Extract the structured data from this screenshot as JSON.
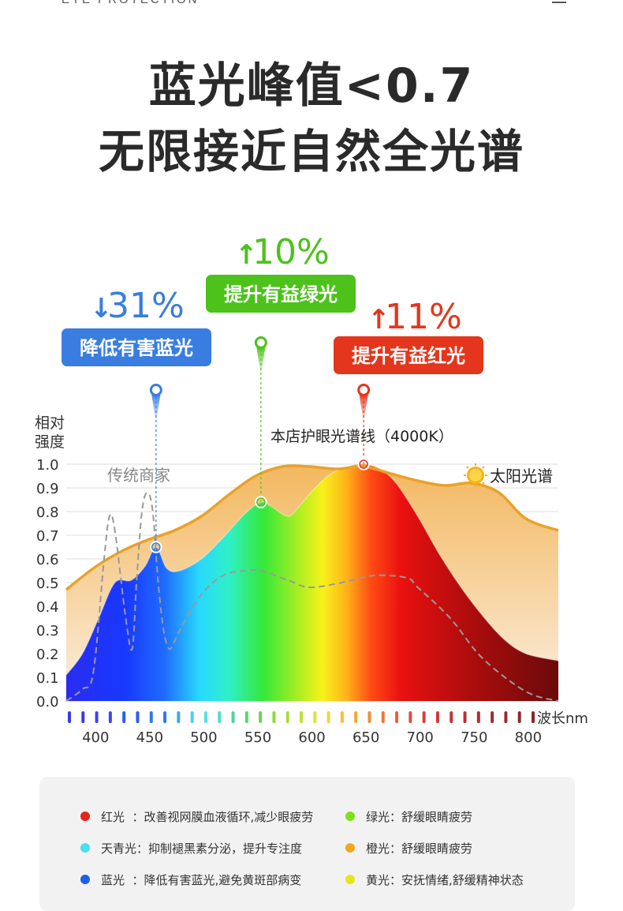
{
  "top_caption": "EYE PROTECTION",
  "headline": {
    "line1": "蓝光峰值<0.7",
    "line2": "无限接近自然全光谱"
  },
  "colors": {
    "blue_badge": "#3a7de0",
    "green_badge": "#4cc21a",
    "red_badge": "#e4361c",
    "sun_curve": "#e8a22a",
    "sun_fill": "#f5c98a",
    "grid": "#dddddd",
    "traditional": "#999999"
  },
  "callouts": [
    {
      "arrow": "↓",
      "pct": "31%",
      "label": "降低有害蓝光",
      "color": "#3a7de0"
    },
    {
      "arrow": "↑",
      "pct": "10%",
      "label": "提升有益绿光",
      "color": "#4cc21a"
    },
    {
      "arrow": "↑",
      "pct": "11%",
      "label": "提升有益红光",
      "color": "#e4361c"
    }
  ],
  "chart_data": {
    "type": "area",
    "ylabel": "相对强度",
    "xlabel": "波长nm",
    "ylim": [
      0,
      1.0
    ],
    "xlim": [
      375,
      830
    ],
    "y_ticks": [
      "0.0",
      "0.1",
      "0.2",
      "0.3",
      "0.4",
      "0.5",
      "0.6",
      "0.7",
      "0.8",
      "0.9",
      "1.0"
    ],
    "x_ticks": [
      "400",
      "450",
      "500",
      "550",
      "600",
      "650",
      "700",
      "750",
      "800"
    ],
    "grid": true,
    "series": [
      {
        "name": "太阳光谱",
        "x": [
          375,
          400,
          425,
          450,
          475,
          500,
          525,
          550,
          575,
          600,
          625,
          650,
          675,
          700,
          725,
          750,
          775,
          800,
          830
        ],
        "values": [
          0.47,
          0.56,
          0.63,
          0.68,
          0.72,
          0.78,
          0.87,
          0.95,
          0.99,
          0.99,
          0.98,
          0.99,
          0.96,
          0.93,
          0.91,
          0.92,
          0.88,
          0.77,
          0.72
        ]
      },
      {
        "name": "本店护眼光谱线（4000K）",
        "x": [
          375,
          390,
          405,
          420,
          435,
          448,
          458,
          468,
          480,
          500,
          520,
          540,
          555,
          565,
          580,
          590,
          605,
          620,
          635,
          650,
          665,
          680,
          700,
          720,
          740,
          760,
          780,
          800,
          830
        ],
        "values": [
          0.11,
          0.2,
          0.35,
          0.5,
          0.51,
          0.57,
          0.65,
          0.56,
          0.55,
          0.6,
          0.69,
          0.79,
          0.84,
          0.82,
          0.78,
          0.82,
          0.9,
          0.96,
          0.99,
          1.0,
          0.98,
          0.92,
          0.78,
          0.62,
          0.48,
          0.36,
          0.26,
          0.2,
          0.17
        ]
      },
      {
        "name": "传统商家",
        "x": [
          375,
          390,
          400,
          410,
          415,
          420,
          430,
          436,
          440,
          445,
          450,
          455,
          460,
          465,
          470,
          475,
          480,
          500,
          520,
          540,
          555,
          580,
          600,
          630,
          660,
          690,
          700,
          730,
          760,
          800,
          830
        ],
        "values": [
          0.0,
          0.05,
          0.12,
          0.6,
          0.78,
          0.72,
          0.35,
          0.22,
          0.5,
          0.8,
          0.88,
          0.8,
          0.5,
          0.3,
          0.22,
          0.25,
          0.3,
          0.45,
          0.53,
          0.55,
          0.55,
          0.51,
          0.48,
          0.5,
          0.53,
          0.52,
          0.48,
          0.35,
          0.18,
          0.04,
          0.0
        ]
      }
    ],
    "markers": [
      {
        "x": 458,
        "y": 0.65,
        "color": "#3a7de0"
      },
      {
        "x": 555,
        "y": 0.84,
        "color": "#4cc21a"
      },
      {
        "x": 650,
        "y": 1.0,
        "color": "#e4361c"
      }
    ],
    "annotations": {
      "led": "本店护眼光谱线（4000K）",
      "traditional": "传统商家",
      "sun": "太阳光谱"
    }
  },
  "legend": [
    {
      "color": "#e8231b",
      "text": "红光  ：改善视网膜血液循环,减少眼疲劳"
    },
    {
      "color": "#7fe01a",
      "text": "绿光：舒缓眼睛疲劳"
    },
    {
      "color": "#47e0ec",
      "text": "天青光：抑制褪黑素分泌，提升专注度"
    },
    {
      "color": "#f0a81e",
      "text": "橙光：舒缓眼睛疲劳"
    },
    {
      "color": "#1f5ee6",
      "text": "蓝光  ：降低有害蓝光,避免黄斑部病变"
    },
    {
      "color": "#e8e41a",
      "text": "黄光：安抚情绪,舒缓精神状态"
    }
  ]
}
